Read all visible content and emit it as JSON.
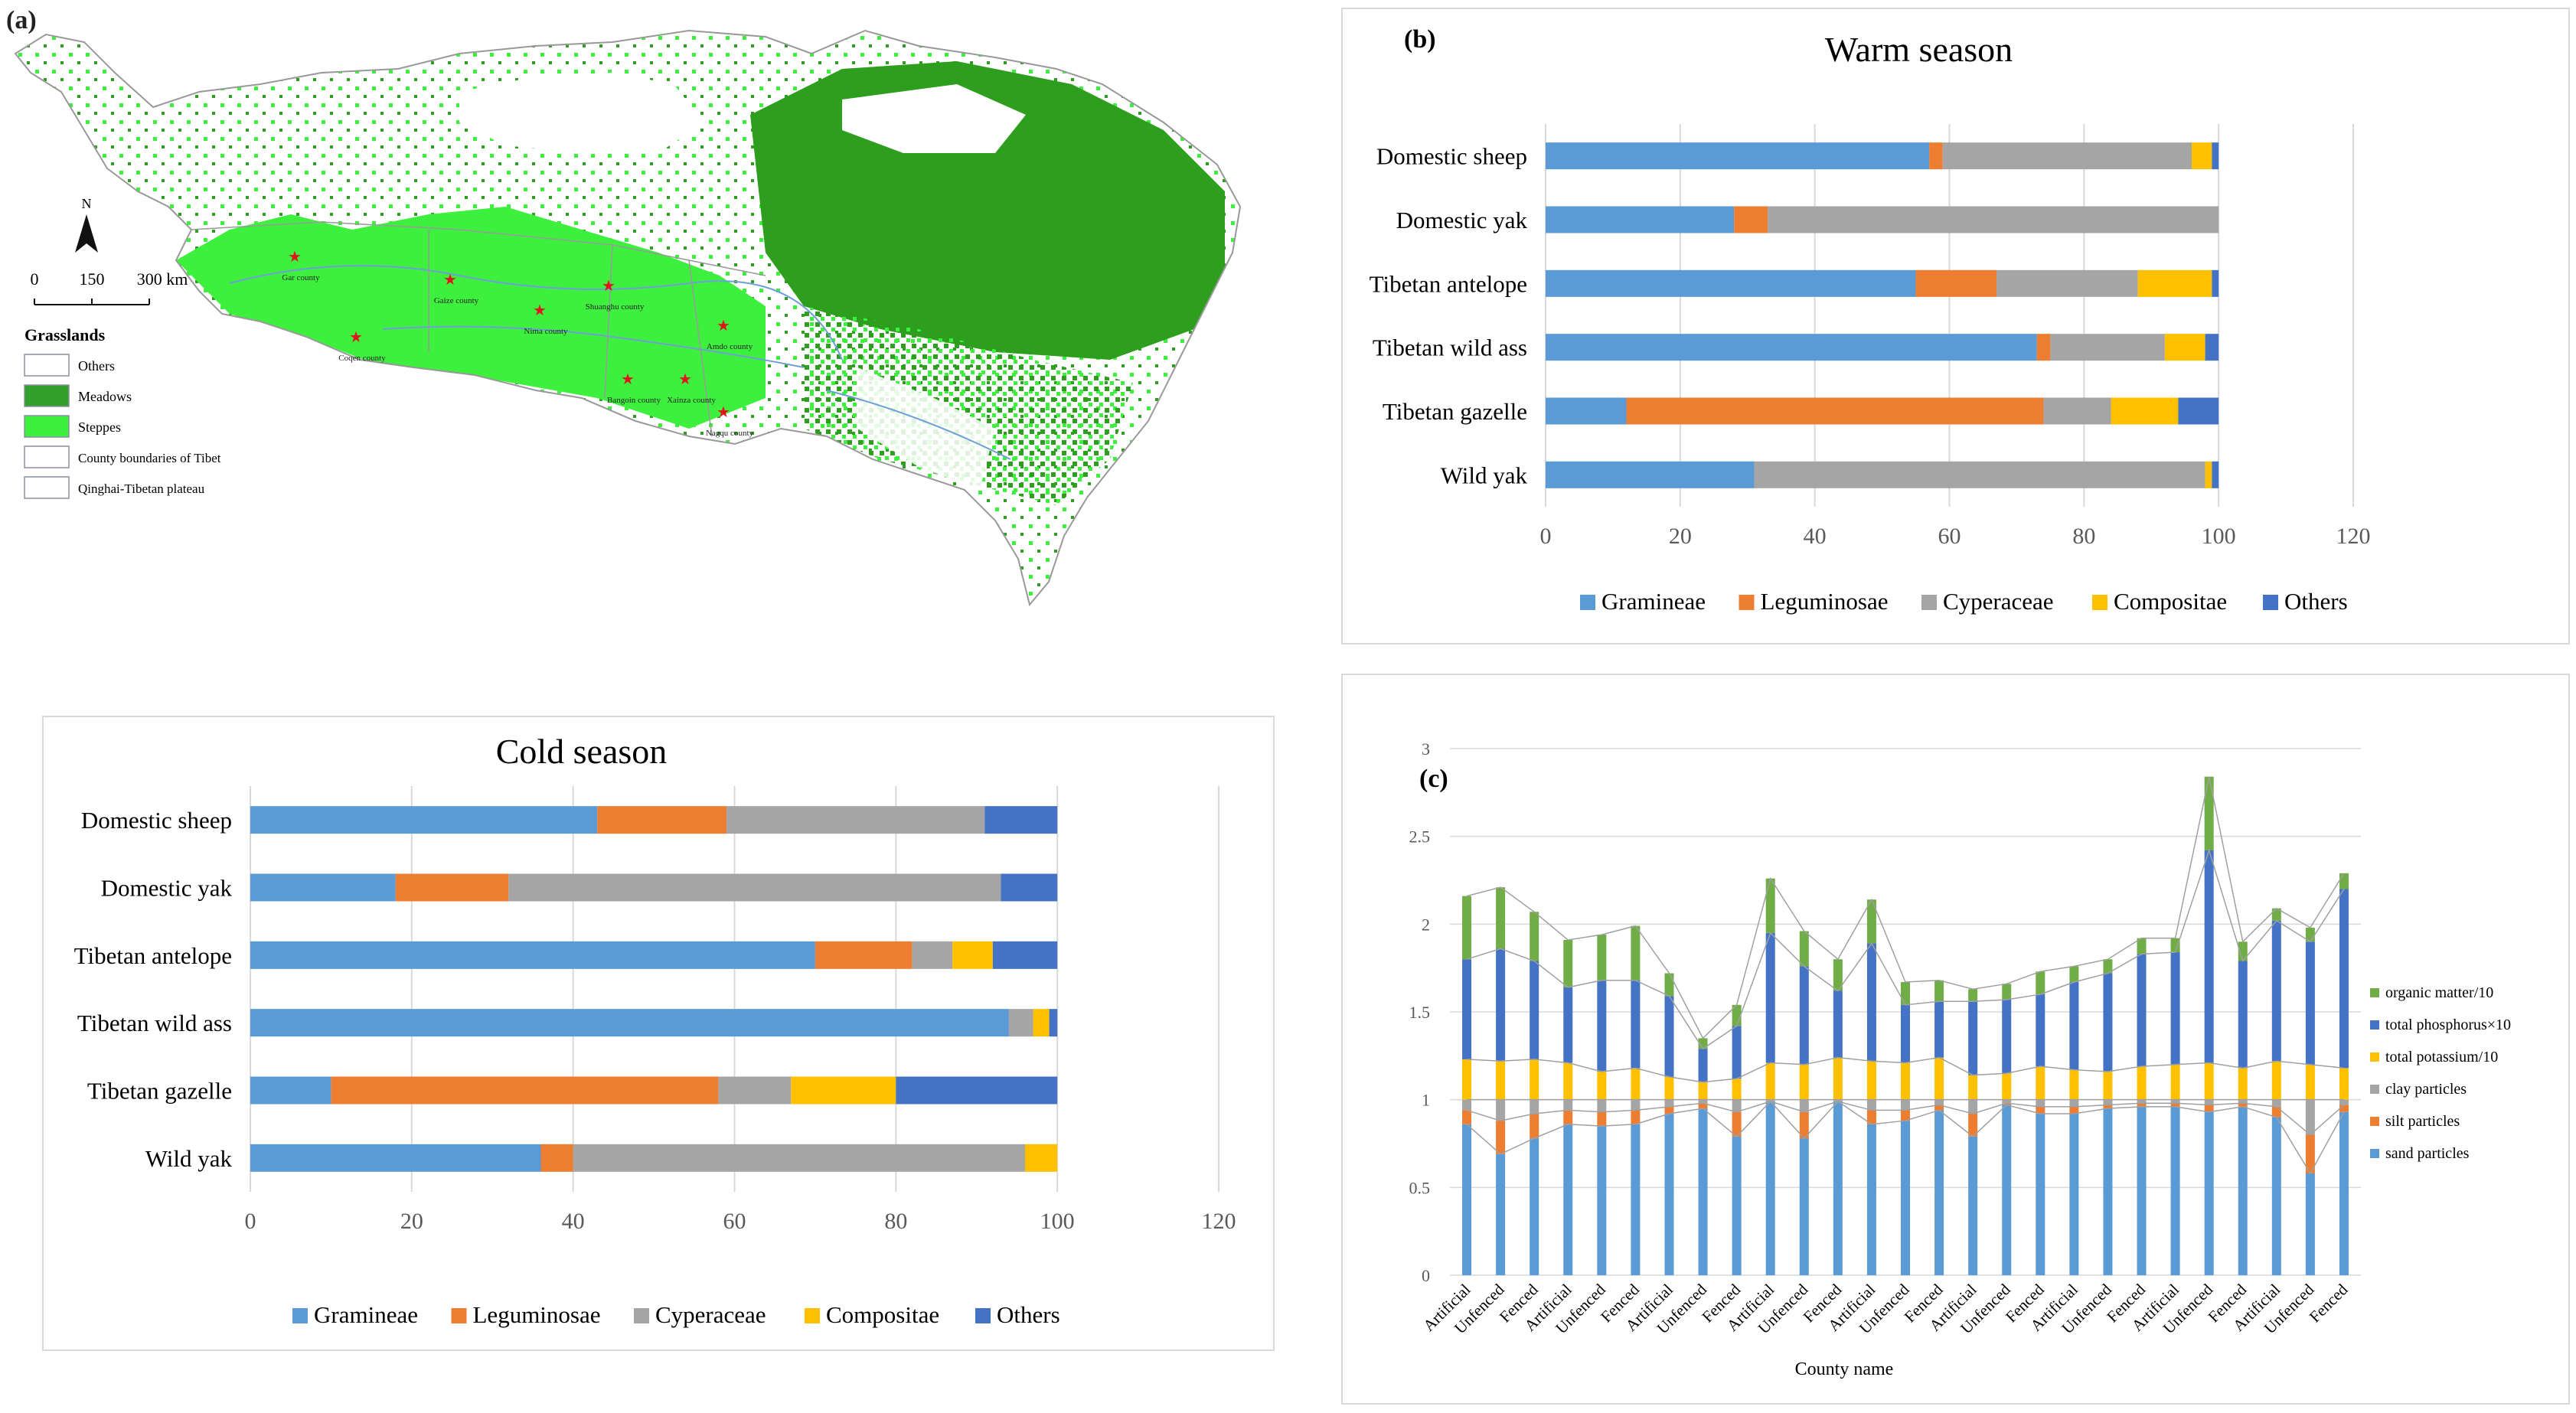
{
  "panels": {
    "a": {
      "label": "(a)",
      "north": "N",
      "scale_ticks": [
        "0",
        "150",
        "300 km"
      ],
      "legend_title": "Grasslands",
      "legend_items": [
        {
          "label": "Others",
          "color": "#ffffff"
        },
        {
          "label": "Meadows",
          "color": "#33a02c"
        },
        {
          "label": "Steppes",
          "color": "#3ef03e"
        },
        {
          "label": "County boundaries of Tibet",
          "color": "#ffffff"
        },
        {
          "label": "Qinghai-Tibetan plateau",
          "color": "#ffffff"
        }
      ],
      "counties": [
        "Gar county",
        "Gaize county",
        "Shuanghu county",
        "Nima county",
        "Amdo county",
        "Coqen county",
        "Bangoin county",
        "Xainza county",
        "Nagqu county"
      ],
      "colors": {
        "meadow": "#2e9e1f",
        "steppe": "#3ef03e",
        "border": "#999999",
        "river": "#6f9fd8",
        "star": "#e0141e"
      }
    },
    "b_label": "(b)",
    "c_label": "(c)"
  },
  "chart_data": [
    {
      "id": "warm",
      "type": "bar",
      "orientation": "horizontal",
      "stacked": true,
      "title": "Warm season",
      "categories": [
        "Domestic sheep",
        "Domestic yak",
        "Tibetan antelope",
        "Tibetan wild ass",
        "Tibetan gazelle",
        "Wild yak"
      ],
      "series": [
        {
          "name": "Gramineae",
          "color": "#5b9bd5",
          "values": [
            57,
            28,
            55,
            73,
            12,
            31
          ]
        },
        {
          "name": "Leguminosae",
          "color": "#ed7d31",
          "values": [
            2,
            5,
            12,
            2,
            62,
            0
          ]
        },
        {
          "name": "Cyperaceae",
          "color": "#a5a5a5",
          "values": [
            37,
            67,
            21,
            17,
            10,
            67
          ]
        },
        {
          "name": "Compositae",
          "color": "#ffc000",
          "values": [
            3,
            0,
            11,
            6,
            10,
            1
          ]
        },
        {
          "name": "Others",
          "color": "#4472c4",
          "values": [
            1,
            0,
            1,
            2,
            6,
            1
          ]
        }
      ],
      "xlim": [
        0,
        120
      ],
      "xticks": [
        0,
        20,
        40,
        60,
        80,
        100,
        120
      ],
      "legend_position": "bottom"
    },
    {
      "id": "cold",
      "type": "bar",
      "orientation": "horizontal",
      "stacked": true,
      "title": "Cold season",
      "categories": [
        "Domestic sheep",
        "Domestic yak",
        "Tibetan antelope",
        "Tibetan wild ass",
        "Tibetan gazelle",
        "Wild yak"
      ],
      "series": [
        {
          "name": "Gramineae",
          "color": "#5b9bd5",
          "values": [
            43,
            18,
            70,
            94,
            10,
            36
          ]
        },
        {
          "name": "Leguminosae",
          "color": "#ed7d31",
          "values": [
            16,
            14,
            12,
            0,
            48,
            4
          ]
        },
        {
          "name": "Cyperaceae",
          "color": "#a5a5a5",
          "values": [
            32,
            61,
            5,
            3,
            9,
            56
          ]
        },
        {
          "name": "Compositae",
          "color": "#ffc000",
          "values": [
            0,
            0,
            5,
            2,
            13,
            4
          ]
        },
        {
          "name": "Others",
          "color": "#4472c4",
          "values": [
            9,
            7,
            8,
            1,
            20,
            0
          ]
        }
      ],
      "xlim": [
        0,
        120
      ],
      "xticks": [
        0,
        20,
        40,
        60,
        80,
        100,
        120
      ],
      "legend_position": "bottom"
    },
    {
      "id": "soil",
      "type": "bar",
      "stacked": true,
      "title": "",
      "xlabel": "County name",
      "ylim": [
        0,
        3
      ],
      "yticks": [
        "0",
        "0.5",
        "1",
        "1.5",
        "2",
        "2.5",
        "3"
      ],
      "categories": [
        "Artificial",
        "Unfenced",
        "Fenced",
        "Artificial",
        "Unfenced",
        "Fenced",
        "Artificial",
        "Unfenced",
        "Fenced",
        "Artificial",
        "Unfenced",
        "Fenced",
        "Artificial",
        "Unfenced",
        "Fenced",
        "Artificial",
        "Unfenced",
        "Fenced",
        "Artificial",
        "Unfenced",
        "Fenced",
        "Artificial",
        "Unfenced",
        "Fenced",
        "Artificial",
        "Unfenced",
        "Fenced"
      ],
      "series": [
        {
          "name": "sand particles",
          "color": "#5b9bd5",
          "values": [
            0.86,
            0.69,
            0.78,
            0.86,
            0.85,
            0.86,
            0.92,
            0.95,
            0.79,
            0.99,
            0.78,
            0.99,
            0.86,
            0.88,
            0.94,
            0.79,
            0.97,
            0.92,
            0.92,
            0.95,
            0.96,
            0.96,
            0.93,
            0.96,
            0.9,
            0.58,
            0.93
          ]
        },
        {
          "name": "silt particles",
          "color": "#ed7d31",
          "values": [
            0.08,
            0.19,
            0.14,
            0.08,
            0.08,
            0.08,
            0.04,
            0.03,
            0.14,
            0.0,
            0.15,
            0.0,
            0.08,
            0.06,
            0.03,
            0.13,
            0.01,
            0.04,
            0.04,
            0.02,
            0.02,
            0.02,
            0.04,
            0.02,
            0.06,
            0.22,
            0.04
          ]
        },
        {
          "name": "clay particles",
          "color": "#a5a5a5",
          "values": [
            0.06,
            0.12,
            0.08,
            0.06,
            0.07,
            0.06,
            0.04,
            0.02,
            0.07,
            0.01,
            0.07,
            0.01,
            0.06,
            0.06,
            0.03,
            0.08,
            0.02,
            0.04,
            0.04,
            0.03,
            0.02,
            0.02,
            0.03,
            0.02,
            0.04,
            0.2,
            0.03
          ]
        },
        {
          "name": "total potassium/10",
          "color": "#ffc000",
          "values": [
            0.23,
            0.22,
            0.23,
            0.21,
            0.16,
            0.18,
            0.13,
            0.1,
            0.12,
            0.21,
            0.2,
            0.24,
            0.22,
            0.21,
            0.24,
            0.14,
            0.15,
            0.19,
            0.17,
            0.16,
            0.19,
            0.2,
            0.21,
            0.18,
            0.22,
            0.2,
            0.18
          ]
        },
        {
          "name": "total phosphorus×10",
          "color": "#4472c4",
          "values": [
            0.57,
            0.64,
            0.56,
            0.43,
            0.52,
            0.5,
            0.46,
            0.19,
            0.3,
            0.74,
            0.56,
            0.38,
            0.67,
            0.33,
            0.32,
            0.42,
            0.42,
            0.41,
            0.5,
            0.56,
            0.64,
            0.64,
            1.21,
            0.61,
            0.8,
            0.7,
            1.02
          ]
        },
        {
          "name": "organic matter/10",
          "color": "#70ad47",
          "values": [
            0.36,
            0.35,
            0.28,
            0.27,
            0.26,
            0.31,
            0.13,
            0.06,
            0.12,
            0.31,
            0.2,
            0.18,
            0.25,
            0.13,
            0.12,
            0.07,
            0.09,
            0.13,
            0.09,
            0.08,
            0.09,
            0.08,
            0.42,
            0.11,
            0.07,
            0.08,
            0.09
          ]
        }
      ],
      "legend_position": "right"
    }
  ]
}
